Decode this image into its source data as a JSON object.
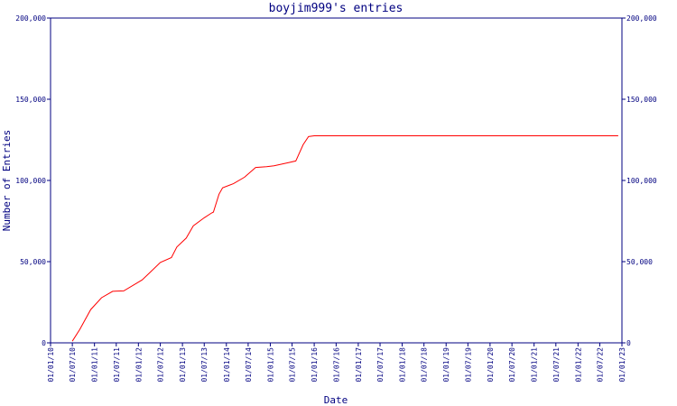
{
  "chart_data": {
    "type": "line",
    "title": "boyjim999's entries",
    "x_label": "Date",
    "y_label": "Number of Entries",
    "x": [
      "2010-07-01",
      "2010-09-01",
      "2010-12-01",
      "2011-03-01",
      "2011-06-01",
      "2011-09-01",
      "2011-12-01",
      "2012-02-01",
      "2012-04-01",
      "2012-07-01",
      "2012-10-01",
      "2012-11-15",
      "2013-02-01",
      "2013-04-01",
      "2013-07-01",
      "2013-09-01",
      "2013-09-15",
      "2013-11-01",
      "2013-12-01",
      "2014-03-01",
      "2014-06-01",
      "2014-09-01",
      "2014-12-01",
      "2015-02-01",
      "2015-06-01",
      "2015-08-01",
      "2015-10-01",
      "2015-11-15",
      "2016-01-01",
      "2022-12-01"
    ],
    "series": [
      {
        "name": "entries",
        "color": "#ff0000",
        "values": [
          1000,
          8300,
          20500,
          27800,
          31700,
          32000,
          36000,
          38800,
          43000,
          49500,
          52500,
          59000,
          64500,
          72000,
          77000,
          80000,
          80500,
          91500,
          95500,
          98000,
          102000,
          108000,
          108500,
          109000,
          111000,
          112000,
          122000,
          127000,
          127500,
          127500
        ]
      }
    ],
    "xlim": [
      "2010-01-01",
      "2023-01-01"
    ],
    "xticks": [
      {
        "value": "2010-01-01",
        "label": "01/01/10"
      },
      {
        "value": "2010-07-01",
        "label": "01/07/10"
      },
      {
        "value": "2011-01-01",
        "label": "01/01/11"
      },
      {
        "value": "2011-07-01",
        "label": "01/07/11"
      },
      {
        "value": "2012-01-01",
        "label": "01/01/12"
      },
      {
        "value": "2012-07-01",
        "label": "01/07/12"
      },
      {
        "value": "2013-01-01",
        "label": "01/01/13"
      },
      {
        "value": "2013-07-01",
        "label": "01/07/13"
      },
      {
        "value": "2014-01-01",
        "label": "01/01/14"
      },
      {
        "value": "2014-07-01",
        "label": "01/07/14"
      },
      {
        "value": "2015-01-01",
        "label": "01/01/15"
      },
      {
        "value": "2015-07-01",
        "label": "01/07/15"
      },
      {
        "value": "2016-01-01",
        "label": "01/01/16"
      },
      {
        "value": "2016-07-01",
        "label": "01/07/16"
      },
      {
        "value": "2017-01-01",
        "label": "01/01/17"
      },
      {
        "value": "2017-07-01",
        "label": "01/07/17"
      },
      {
        "value": "2018-01-01",
        "label": "01/01/18"
      },
      {
        "value": "2018-07-01",
        "label": "01/07/18"
      },
      {
        "value": "2019-01-01",
        "label": "01/01/19"
      },
      {
        "value": "2019-07-01",
        "label": "01/07/19"
      },
      {
        "value": "2020-01-01",
        "label": "01/01/20"
      },
      {
        "value": "2020-07-01",
        "label": "01/07/20"
      },
      {
        "value": "2021-01-01",
        "label": "01/01/21"
      },
      {
        "value": "2021-07-01",
        "label": "01/07/21"
      },
      {
        "value": "2022-01-01",
        "label": "01/01/22"
      },
      {
        "value": "2022-07-01",
        "label": "01/07/22"
      },
      {
        "value": "2023-01-01",
        "label": "01/01/23"
      }
    ],
    "ylim": [
      0,
      200000
    ],
    "yticks": [
      0,
      {
        "value": 50000,
        "label": "50,000"
      },
      {
        "value": 100000,
        "label": "100,000"
      },
      {
        "value": 150000,
        "label": "150,000"
      },
      {
        "value": 200000,
        "label": "200,000"
      }
    ]
  }
}
